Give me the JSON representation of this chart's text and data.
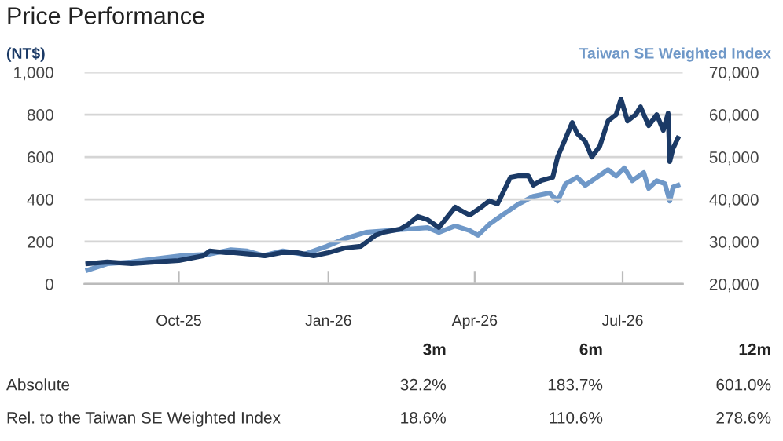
{
  "chart_data": {
    "type": "line",
    "title": "Price Performance",
    "ylabel": "(NT$)",
    "y2label": "Taiwan SE Weighted Index",
    "x": [
      "2025-08-06",
      "2025-08-18",
      "2025-09-02",
      "2025-09-16",
      "2025-10-01",
      "2025-10-11",
      "2025-10-16",
      "2025-10-20",
      "2025-10-30",
      "2025-11-04",
      "2025-11-14",
      "2025-11-23",
      "2025-12-03",
      "2025-12-13",
      "2025-12-23",
      "2026-01-01",
      "2026-01-11",
      "2026-01-21",
      "2026-01-30",
      "2026-02-04",
      "2026-02-14",
      "2026-02-19",
      "2026-02-25",
      "2026-03-03",
      "2026-03-10",
      "2026-03-20",
      "2026-03-25",
      "2026-03-29",
      "2026-04-05",
      "2026-04-10",
      "2026-04-15",
      "2026-04-23",
      "2026-04-28",
      "2026-05-04",
      "2026-05-07",
      "2026-05-12",
      "2026-05-19",
      "2026-05-22",
      "2026-05-27",
      "2026-05-31",
      "2026-06-03",
      "2026-06-08",
      "2026-06-12",
      "2026-06-17",
      "2026-06-22",
      "2026-06-27",
      "2026-06-30",
      "2026-07-04",
      "2026-07-09",
      "2026-07-12",
      "2026-07-17",
      "2026-07-22",
      "2026-07-26",
      "2026-07-29",
      "2026-07-30",
      "2026-08-01",
      "2026-08-04"
    ],
    "series": [
      {
        "color": "#1b3a66",
        "values": [
          96,
          104,
          96,
          104,
          111,
          126,
          133,
          156,
          148,
          148,
          141,
          133,
          148,
          148,
          133,
          148,
          170,
          178,
          230,
          244,
          259,
          281,
          319,
          304,
          267,
          363,
          341,
          326,
          363,
          393,
          378,
          504,
          511,
          511,
          467,
          489,
          504,
          600,
          689,
          763,
          711,
          674,
          600,
          652,
          770,
          800,
          874,
          770,
          800,
          837,
          748,
          800,
          726,
          807,
          578,
          640,
          689
        ]
      },
      {
        "color": "#6f98c8",
        "axis": "y2",
        "x": [
          "2025-08-06",
          "2025-08-18",
          "2025-09-02",
          "2025-09-16",
          "2025-10-03",
          "2025-10-19",
          "2025-11-02",
          "2025-11-12",
          "2025-11-22",
          "2025-12-04",
          "2025-12-17",
          "2025-12-31",
          "2026-01-11",
          "2026-01-24",
          "2026-02-06",
          "2026-03-03",
          "2026-03-10",
          "2026-03-20",
          "2026-03-29",
          "2026-04-03",
          "2026-04-10",
          "2026-04-18",
          "2026-04-28",
          "2026-05-07",
          "2026-05-17",
          "2026-05-22",
          "2026-05-27",
          "2026-06-03",
          "2026-06-08",
          "2026-06-22",
          "2026-06-27",
          "2026-07-02",
          "2026-07-07",
          "2026-07-14",
          "2026-07-17",
          "2026-07-22",
          "2026-07-27",
          "2026-07-30",
          "2026-08-01",
          "2026-08-04"
        ],
        "values": [
          23300,
          24800,
          25200,
          25900,
          26700,
          27000,
          28100,
          27800,
          26700,
          27800,
          27000,
          28900,
          30700,
          32200,
          32600,
          33300,
          32200,
          33700,
          32600,
          31500,
          34100,
          36300,
          38900,
          40700,
          41500,
          39600,
          43700,
          45200,
          43300,
          47000,
          45500,
          47400,
          44400,
          46300,
          42600,
          44400,
          43700,
          39600,
          42900,
          43300
        ]
      }
    ],
    "xlim": [
      "2025-08-04",
      "2026-08-07"
    ],
    "xticks": [
      {
        "value": "2025-10-01",
        "label": "Oct-25"
      },
      {
        "value": "2026-01-01",
        "label": "Jan-26"
      },
      {
        "value": "2026-04-01",
        "label": "Apr-26"
      },
      {
        "value": "2026-07-01",
        "label": "Jul-26"
      }
    ],
    "ylim": [
      0,
      1000
    ],
    "yticks": [
      0,
      {
        "value": 200,
        "label": "200"
      },
      {
        "value": 400,
        "label": "400"
      },
      {
        "value": 600,
        "label": "600"
      },
      {
        "value": 800,
        "label": "800"
      },
      {
        "value": 1000,
        "label": "1,000"
      }
    ],
    "y2lim": [
      20000,
      70000
    ],
    "y2ticks": [
      {
        "value": 20000,
        "label": "20,000"
      },
      {
        "value": 30000,
        "label": "30,000"
      },
      {
        "value": 40000,
        "label": "40,000"
      },
      {
        "value": 50000,
        "label": "50,000"
      },
      {
        "value": 60000,
        "label": "60,000"
      },
      {
        "value": 70000,
        "label": "70,000"
      }
    ],
    "grid": "y",
    "legend": false,
    "marker": "none",
    "line_style": "solid",
    "annotations": [
      "3m",
      "6m",
      "12m",
      "Absolute",
      "32.2%",
      "183.7%",
      "601.0%",
      "Rel. to the Taiwan SE Weighted Index",
      "18.6%",
      "110.6%",
      "278.6%"
    ]
  }
}
